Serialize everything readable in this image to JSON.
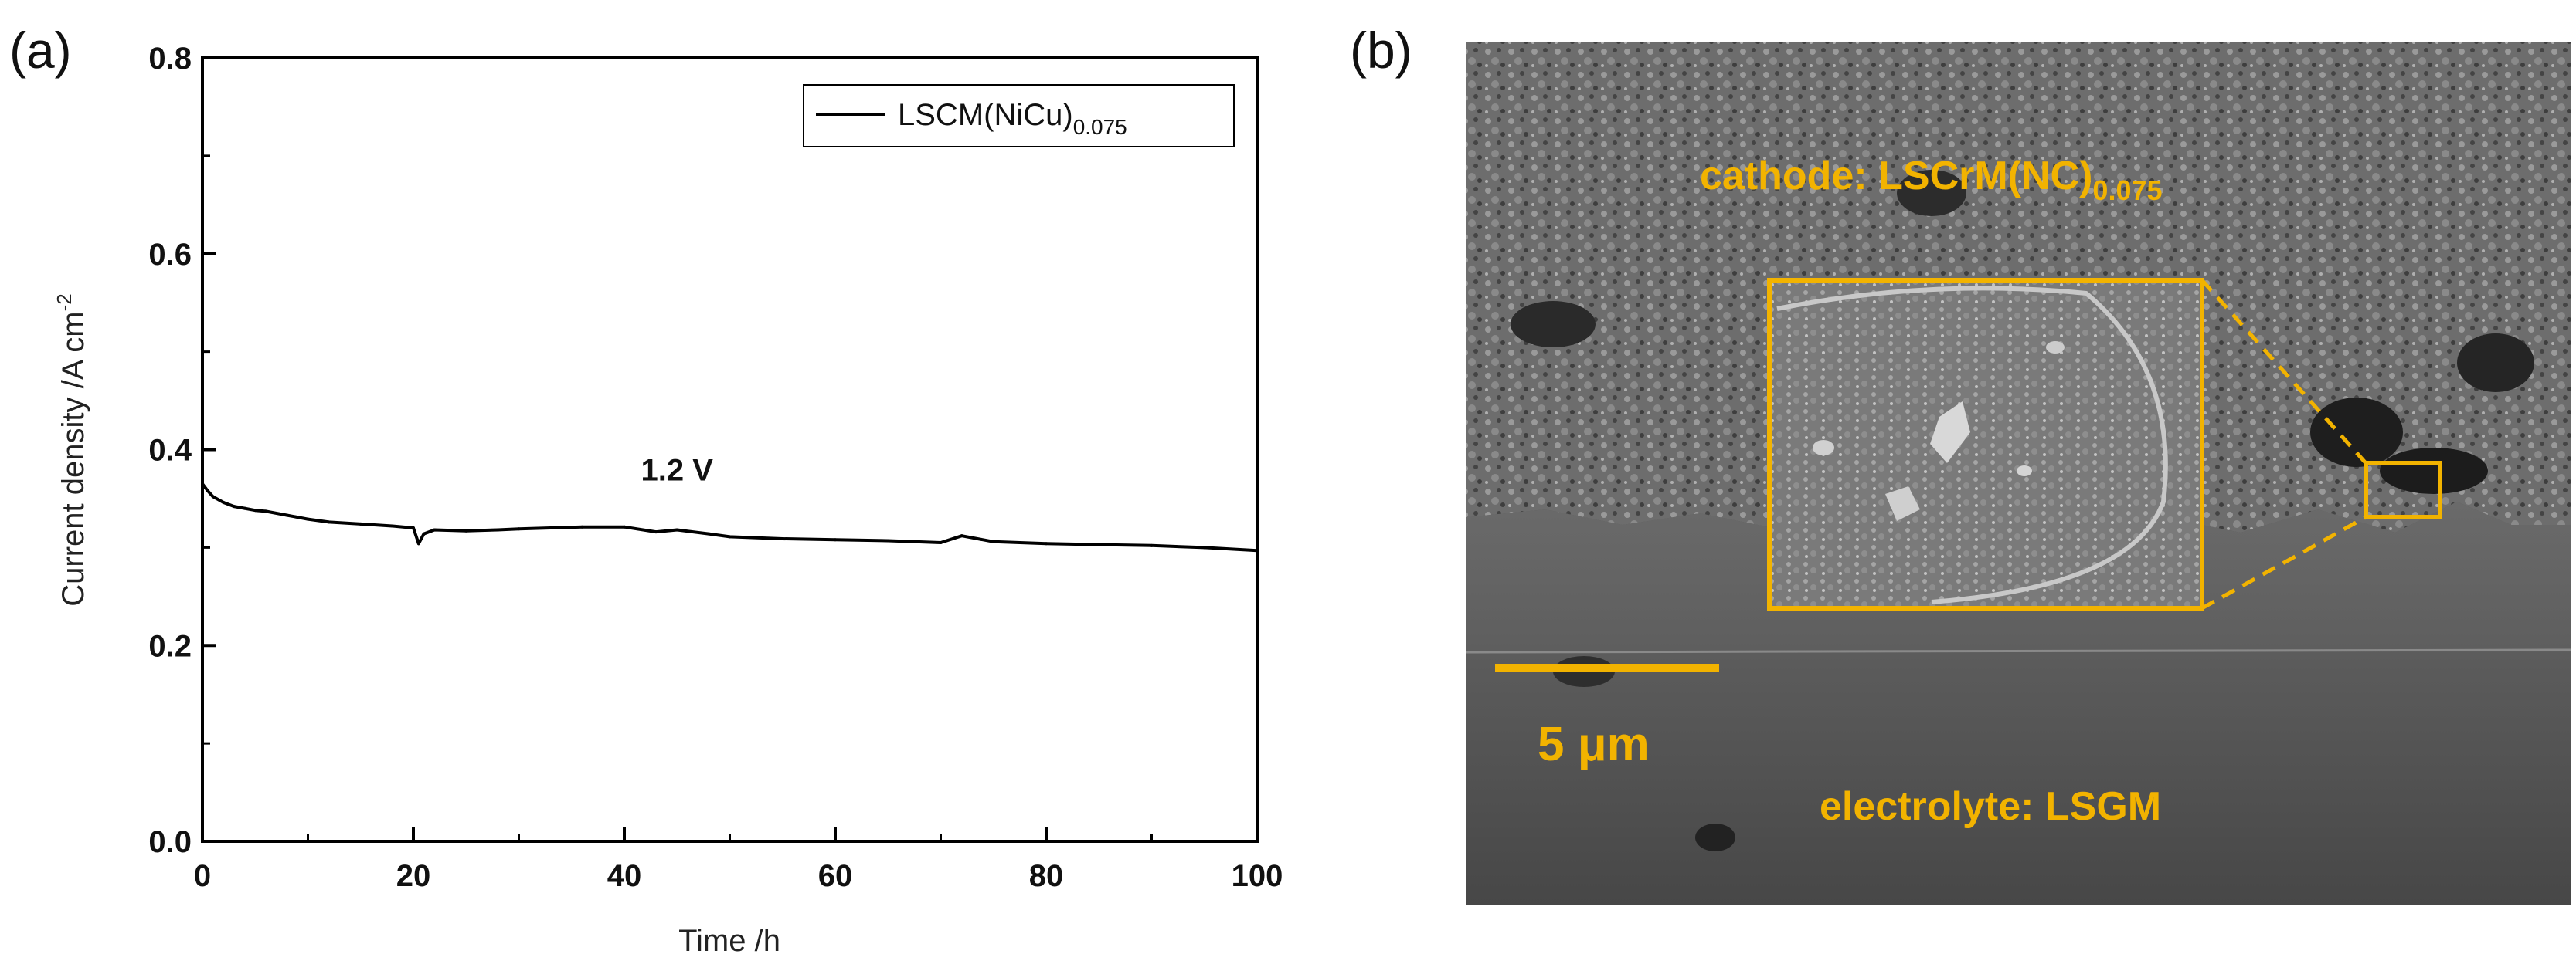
{
  "panels": {
    "a_label": "(a)",
    "b_label": "(b)"
  },
  "chart_data": {
    "type": "line",
    "title": "",
    "xlabel": "Time /h",
    "ylabel": "Current density /A cm",
    "ylabel_sup": "-2",
    "xlim": [
      0,
      100
    ],
    "ylim": [
      0.0,
      0.8
    ],
    "xticks": [
      0,
      20,
      40,
      60,
      80,
      100
    ],
    "xtick_labels": [
      "0",
      "20",
      "40",
      "60",
      "80",
      "100"
    ],
    "yticks": [
      0.0,
      0.2,
      0.4,
      0.6,
      0.8
    ],
    "ytick_labels": [
      "0.0",
      "0.2",
      "0.4",
      "0.6",
      "0.8"
    ],
    "grid": false,
    "legend_position": "top-right",
    "series": [
      {
        "name": "LSCM(NiCu)",
        "name_sub": "0.075",
        "color": "#000000",
        "x": [
          0,
          0.5,
          1,
          2,
          3,
          4,
          5,
          6,
          8,
          10,
          12,
          15,
          18,
          20,
          20.5,
          21,
          22,
          25,
          28,
          30,
          33,
          36,
          40,
          43,
          45,
          48,
          50,
          55,
          60,
          65,
          70,
          72,
          75,
          80,
          85,
          90,
          95,
          100
        ],
        "y": [
          0.365,
          0.358,
          0.352,
          0.346,
          0.342,
          0.34,
          0.338,
          0.337,
          0.333,
          0.329,
          0.326,
          0.324,
          0.322,
          0.32,
          0.304,
          0.314,
          0.318,
          0.317,
          0.318,
          0.319,
          0.32,
          0.321,
          0.321,
          0.316,
          0.318,
          0.314,
          0.311,
          0.309,
          0.308,
          0.307,
          0.305,
          0.312,
          0.306,
          0.304,
          0.303,
          0.302,
          0.3,
          0.297
        ]
      }
    ],
    "annotations": [
      {
        "text": "1.2 V",
        "x": 45,
        "y": 0.345
      }
    ]
  },
  "micrograph": {
    "cathode_label": "cathode: LSCrM(NC)",
    "cathode_sub": "0.075",
    "electrolyte_label": "electrolyte: LSGM",
    "scalebar_label": "5 μm",
    "accent_color": "#f2b300"
  }
}
